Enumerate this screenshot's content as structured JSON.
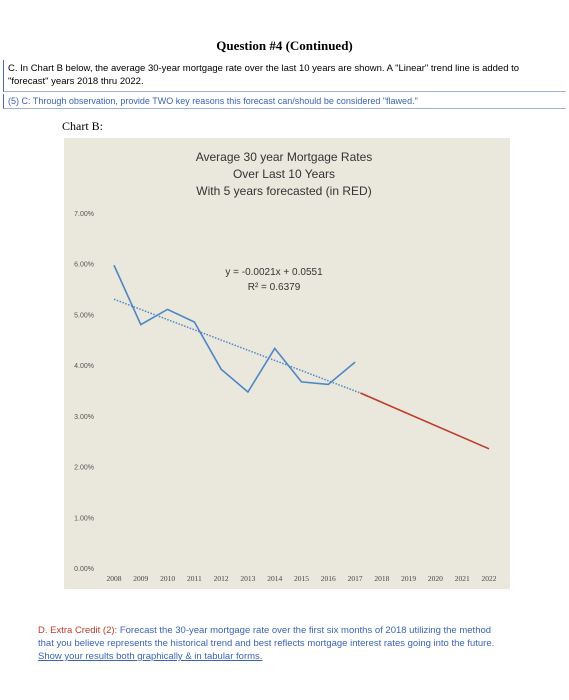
{
  "question_title": "Question #4 (Continued)",
  "part_c": {
    "text": "C. In Chart B below, the average 30-year mortgage rate over the last 10 years are shown.  A \"Linear\" trend line is added to \"forecast\" years 2018 thru 2022.",
    "question": "(5) C:  Through observation, provide TWO key reasons this forecast can/should  be considered \"flawed.\""
  },
  "chart_label": "Chart B:",
  "chart_data": {
    "type": "line",
    "title_lines": [
      "Average 30 year Mortgage Rates",
      "Over Last 10 Years",
      "With 5 years forecasted (in RED)"
    ],
    "x": [
      "2008",
      "2009",
      "2010",
      "2011",
      "2012",
      "2013",
      "2014",
      "2015",
      "2016",
      "2017",
      "2018",
      "2019",
      "2020",
      "2021",
      "2022"
    ],
    "y_ticks": [
      "0.00%",
      "1.00%",
      "2.00%",
      "3.00%",
      "4.00%",
      "5.00%",
      "6.00%",
      "7.00%"
    ],
    "ylim": [
      0,
      0.07
    ],
    "series": [
      {
        "color": "#4f86c6",
        "x": [
          2008,
          2009,
          2010,
          2011,
          2012,
          2013,
          2014,
          2015,
          2016,
          2017
        ],
        "values": [
          0.0597,
          0.048,
          0.051,
          0.0485,
          0.0392,
          0.0347,
          0.0433,
          0.0367,
          0.0362,
          0.0406
        ]
      },
      {
        "color": "#c0392b",
        "x": [
          2017.2,
          2022
        ],
        "values": [
          0.0345,
          0.0235
        ]
      }
    ],
    "trendline": {
      "color": "#4f86c6",
      "x": [
        2008,
        2017.2
      ],
      "values": [
        0.053,
        0.0345
      ]
    },
    "equation": "y = -0.0021x + 0.0551",
    "r_squared": "R² = 0.6379",
    "grid": false
  },
  "part_d": {
    "label": "D. Extra Credit (2):",
    "text": " Forecast the 30-year mortgage rate over the first six months of 2018 utilizing the method that you believe represents the historical trend and best reflects mortgage interest rates going into the future.  ",
    "underlined": "Show your results both graphically & in tabular forms."
  }
}
